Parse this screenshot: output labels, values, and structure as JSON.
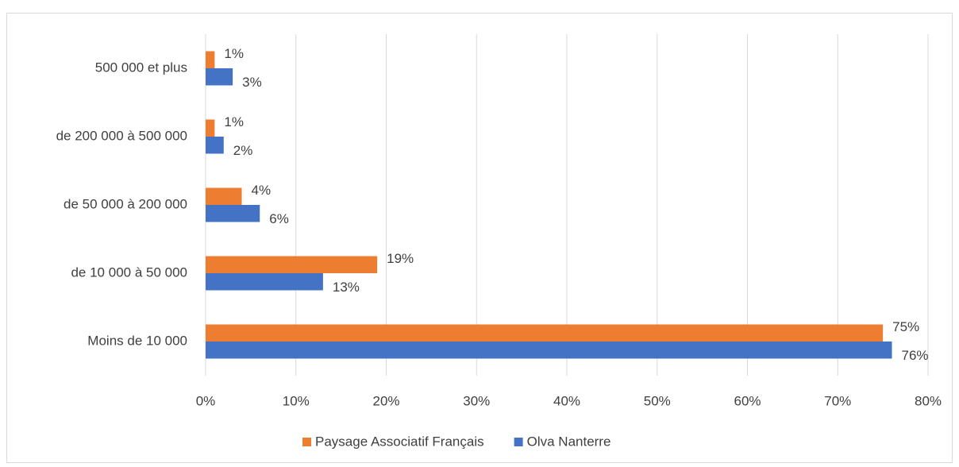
{
  "chart_data": {
    "type": "barh",
    "categories": [
      "500 000 et plus",
      "de 200 000 à 500 000",
      "de 50 000 à 200 000",
      "de 10 000 à 50  000",
      "Moins de 10 000"
    ],
    "series": [
      {
        "name": "Paysage Associatif Français",
        "color": "#ed7d31",
        "values": [
          1,
          1,
          4,
          19,
          75
        ],
        "value_labels": [
          "1%",
          "1%",
          "4%",
          "19%",
          "75%"
        ]
      },
      {
        "name": "Olva Nanterre",
        "color": "#4472c4",
        "values": [
          3,
          2,
          6,
          13,
          76
        ],
        "value_labels": [
          "3%",
          "2%",
          "6%",
          "13%",
          "76%"
        ]
      }
    ],
    "xlim": [
      0,
      80
    ],
    "xticks": [
      {
        "value": 0,
        "label": "0%"
      },
      {
        "value": 10,
        "label": "10%"
      },
      {
        "value": 20,
        "label": "20%"
      },
      {
        "value": 30,
        "label": "30%"
      },
      {
        "value": 40,
        "label": "40%"
      },
      {
        "value": 50,
        "label": "50%"
      },
      {
        "value": 60,
        "label": "60%"
      },
      {
        "value": 70,
        "label": "70%"
      },
      {
        "value": 80,
        "label": "80%"
      }
    ],
    "grid": true,
    "legend": "bottom"
  }
}
